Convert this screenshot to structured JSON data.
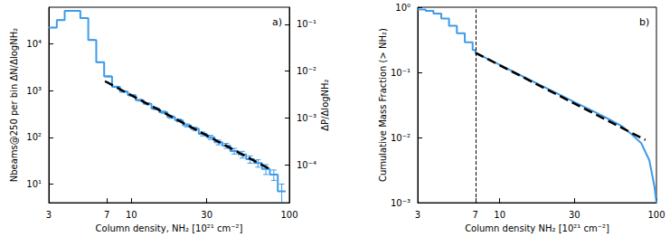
{
  "chart_data": [
    {
      "type": "histogram",
      "label": "a)",
      "x_label": "Column density, NH₂ [10²¹ cm⁻²]",
      "y_label": "Nbeams@250 per bin ΔN/ΔlogNH₂",
      "y2_label": "ΔP/ΔlogNH₂",
      "log": true,
      "color": "#3d9be9",
      "bins": [
        3.0,
        3.37,
        3.78,
        4.24,
        4.75,
        5.33,
        5.99,
        6.72,
        7.54,
        8.46,
        9.49,
        10.65,
        11.95,
        13.4,
        15.0,
        16.9,
        18.9,
        21.2,
        23.8,
        26.7,
        30.0,
        33.6,
        37.7,
        42.3,
        47.5,
        53.3,
        59.8,
        67.1,
        75.3,
        84.5,
        94.8
      ],
      "counts": [
        22000,
        32000,
        50000,
        50000,
        35000,
        12000,
        4000,
        2000,
        1200,
        950,
        790,
        620,
        520,
        410,
        345,
        270,
        230,
        180,
        152,
        118,
        100,
        78,
        66,
        51,
        43,
        34,
        28,
        21,
        16,
        7
      ],
      "errors": [
        150,
        180,
        220,
        220,
        190,
        110,
        63,
        45,
        35,
        31,
        28,
        25,
        23,
        20,
        19,
        16,
        15,
        13,
        12,
        11,
        10,
        9,
        8,
        7,
        7,
        6,
        5,
        5,
        4,
        3
      ],
      "fit": {
        "x": [
          6.8,
          75
        ],
        "values": [
          1580,
          21
        ],
        "color": "#000000",
        "line_style": "dashed"
      },
      "xlim": [
        3,
        100
      ],
      "xticks": [
        3,
        7,
        10,
        30,
        100
      ],
      "ylim": [
        4,
        60000
      ],
      "yticks": [
        {
          "value": 10,
          "label": "10¹"
        },
        {
          "value": 100,
          "label": "10²"
        },
        {
          "value": 1000,
          "label": "10³"
        },
        {
          "value": 10000,
          "label": "10⁴"
        }
      ],
      "y2lim": [
        1.54e-05,
        0.231
      ],
      "y2ticks": [
        {
          "value": 0.0001,
          "label": "10⁻⁴"
        },
        {
          "value": 0.001,
          "label": "10⁻³"
        },
        {
          "value": 0.01,
          "label": "10⁻²"
        },
        {
          "value": 0.1,
          "label": "10⁻¹"
        }
      ]
    },
    {
      "type": "line",
      "label": "b)",
      "x_label": "Column density NH₂ [10²¹ cm⁻²]",
      "y_label": "Cumulative Mass Fraction (> NH₂)",
      "log": true,
      "series": [
        {
          "color": "#3d9be9",
          "line_style": "step",
          "x": [
            3.0,
            3.37,
            3.78,
            4.24,
            4.75,
            5.33,
            5.99,
            6.72,
            7.0
          ],
          "values": [
            0.92,
            0.88,
            0.8,
            0.67,
            0.52,
            0.4,
            0.29,
            0.22,
            0.2
          ]
        },
        {
          "color": "#3d9be9",
          "line_style": "solid",
          "x": [
            7,
            10,
            15,
            20,
            30,
            40,
            50,
            60,
            70,
            80,
            90,
            97,
            100
          ],
          "values": [
            0.2,
            0.131,
            0.08,
            0.057,
            0.035,
            0.025,
            0.019,
            0.015,
            0.011,
            0.0082,
            0.0045,
            0.0018,
            0.001
          ]
        }
      ],
      "fit": {
        "x": [
          7,
          85
        ],
        "values": [
          0.2,
          0.0092
        ],
        "color": "#000000",
        "line_style": "dashed"
      },
      "vline": 7,
      "xlim": [
        3,
        100
      ],
      "xticks": [
        3,
        7,
        10,
        30,
        100
      ],
      "ylim": [
        0.001,
        1
      ],
      "yticks": [
        {
          "value": 0.001,
          "label": "10⁻³"
        },
        {
          "value": 0.01,
          "label": "10⁻²"
        },
        {
          "value": 0.1,
          "label": "10⁻¹"
        },
        {
          "value": 1,
          "label": "10⁰"
        }
      ]
    }
  ]
}
